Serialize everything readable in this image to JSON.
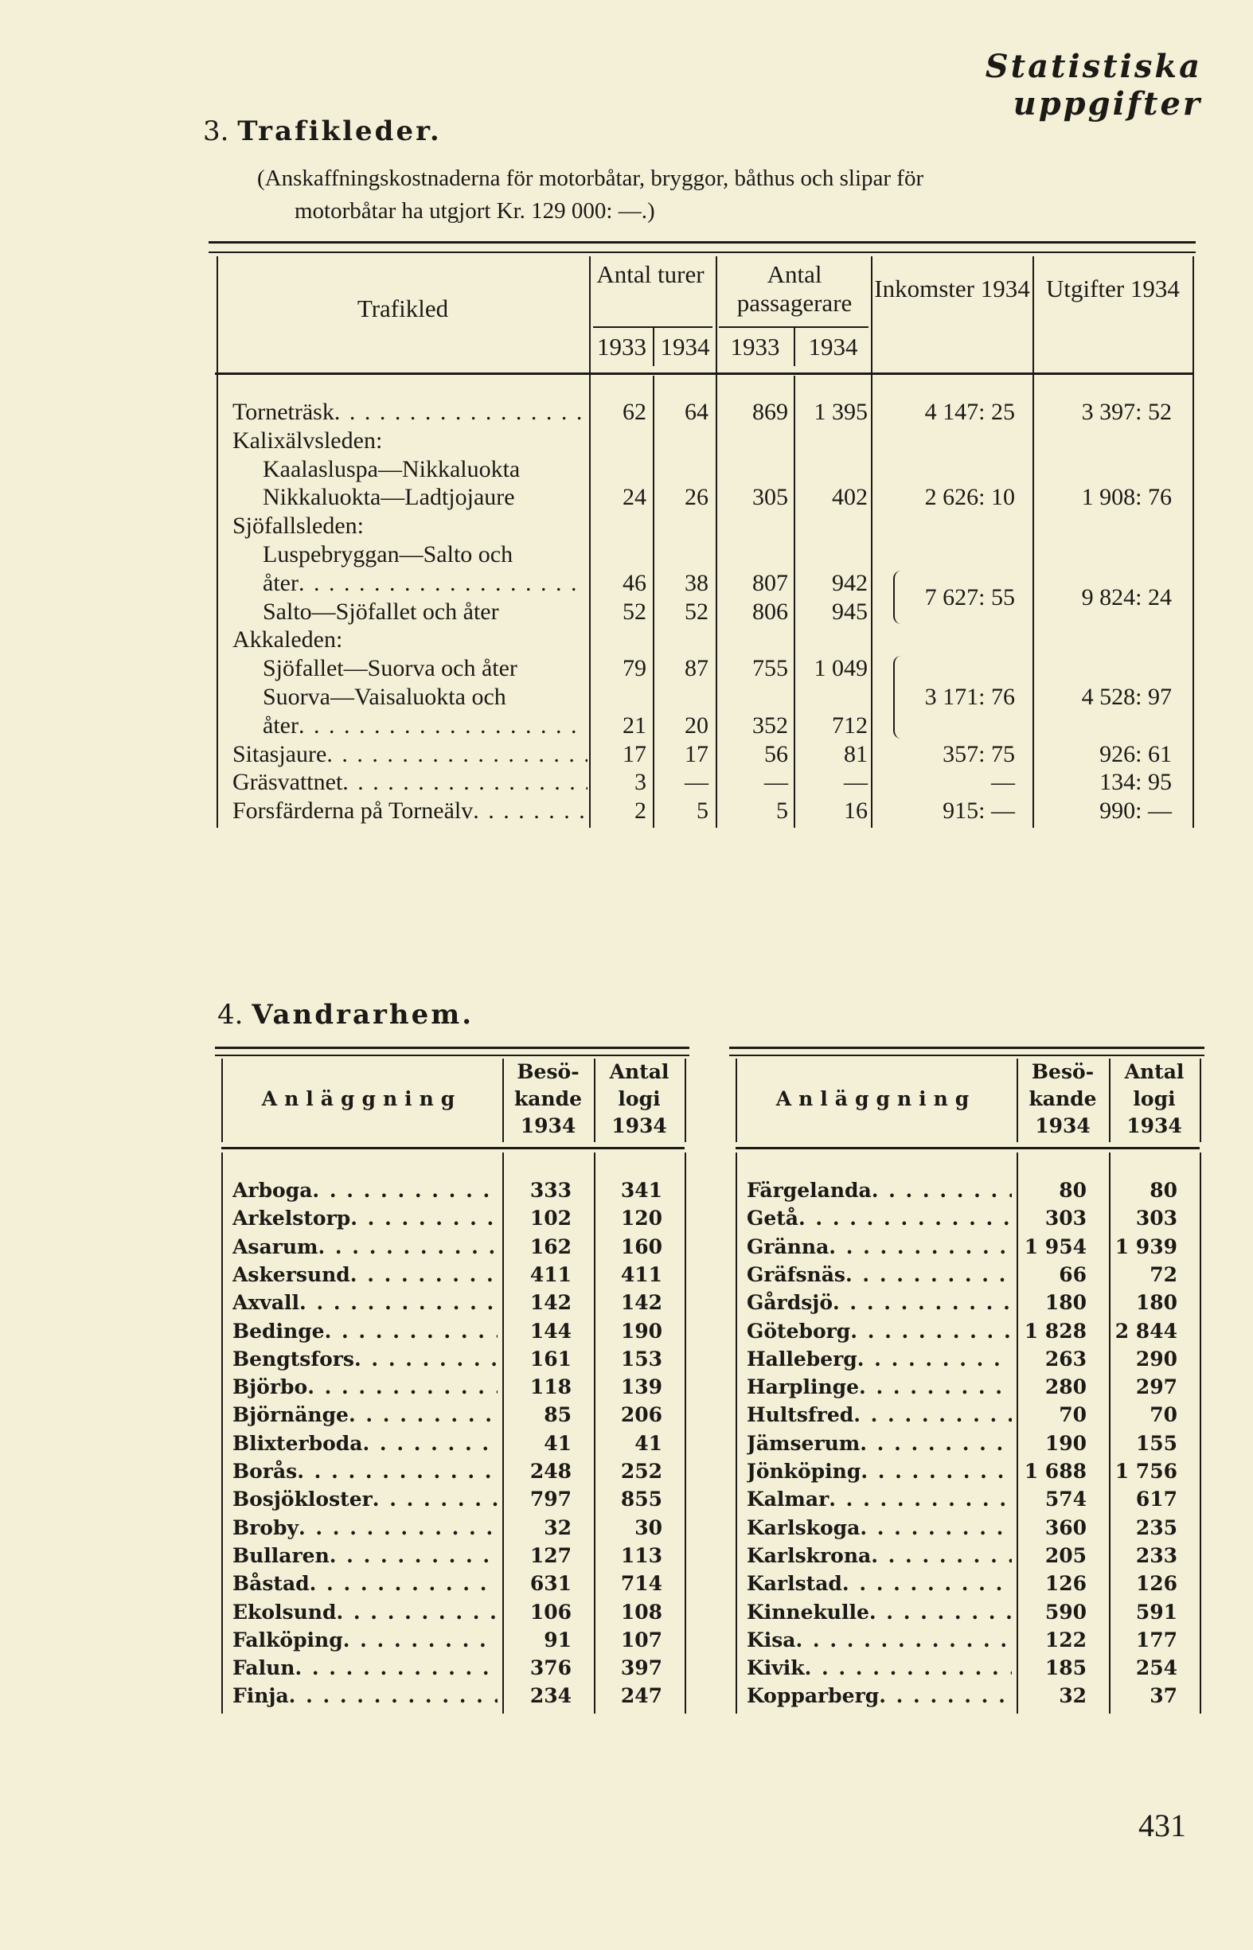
{
  "running_head": "Statistiska uppgifter",
  "section3": {
    "number": "3.",
    "title": "Trafikleder.",
    "note_line1": "(Anskaffningskostnaderna för motorbåtar, bryggor, båthus och slipar för",
    "note_line2": "motorbåtar ha utgjort Kr. 129 000: —.)",
    "headers": {
      "trafikled": "Trafikled",
      "turer": "Antal turer",
      "passagerare": "Antal passagerare",
      "inkomster": "Inkomster 1934",
      "utgifter": "Utgifter 1934",
      "y1933": "1933",
      "y1934": "1934"
    },
    "rows": [
      {
        "label": "Torneträsk",
        "indent": false,
        "leader": true,
        "values": [
          "62",
          "64",
          "869",
          "1 395"
        ],
        "inkomster": "4 147: 25",
        "utgifter": "3 397: 52"
      },
      {
        "label": "Kalixälvsleden:",
        "indent": false
      },
      {
        "label": "Kaalasluspa—Nikkaluokta",
        "indent": true
      },
      {
        "label": "Nikkaluokta—Ladtjojaure",
        "indent": true,
        "values": [
          "24",
          "26",
          "305",
          "402"
        ],
        "inkomster": "2 626: 10",
        "utgifter": "1 908: 76"
      },
      {
        "label": "Sjöfallsleden:",
        "indent": false
      },
      {
        "group": true,
        "inkomster": "7 627: 55",
        "utgifter": "9 824: 24",
        "rows": [
          {
            "label": "Luspebryggan—Salto och",
            "indent": true
          },
          {
            "label": "åter",
            "indent": true,
            "leader": true,
            "values": [
              "46",
              "38",
              "807",
              "942"
            ]
          },
          {
            "label": "Salto—Sjöfallet och åter",
            "indent": true,
            "values": [
              "52",
              "52",
              "806",
              "945"
            ]
          }
        ]
      },
      {
        "label": "Akkaleden:",
        "indent": false
      },
      {
        "group": true,
        "inkomster": "3 171: 76",
        "utgifter": "4 528: 97",
        "rows": [
          {
            "label": "Sjöfallet—Suorva och åter",
            "indent": true,
            "values": [
              "79",
              "87",
              "755",
              "1 049"
            ]
          },
          {
            "label": "Suorva—Vaisaluokta och",
            "indent": true
          },
          {
            "label": "åter",
            "indent": true,
            "leader": true,
            "values": [
              "21",
              "20",
              "352",
              "712"
            ]
          }
        ]
      },
      {
        "label": "Sitasjaure",
        "indent": false,
        "leader": true,
        "values": [
          "17",
          "17",
          "56",
          "81"
        ],
        "inkomster": "357: 75",
        "utgifter": "926: 61"
      },
      {
        "label": "Gräsvattnet",
        "indent": false,
        "leader": true,
        "values": [
          "3",
          "—",
          "—",
          "—"
        ],
        "inkomster": "—",
        "utgifter": "134: 95"
      },
      {
        "label": "Forsfärderna på Torneälv",
        "indent": false,
        "leader": true,
        "values": [
          "2",
          "5",
          "5",
          "16"
        ],
        "inkomster": "915: —",
        "utgifter": "990: —"
      }
    ]
  },
  "section4": {
    "number": "4.",
    "title": "Vandrarhem.",
    "headers": {
      "anlaggning": "Anläggning",
      "besok1": "Besö-",
      "besok2": "kande",
      "besok3": "1934",
      "logi1": "Antal",
      "logi2": "logi",
      "logi3": "1934"
    },
    "left": [
      [
        "Arboga",
        "333",
        "341"
      ],
      [
        "Arkelstorp",
        "102",
        "120"
      ],
      [
        "Asarum",
        "162",
        "160"
      ],
      [
        "Askersund",
        "411",
        "411"
      ],
      [
        "Axvall",
        "142",
        "142"
      ],
      [
        "Bedinge",
        "144",
        "190"
      ],
      [
        "Bengtsfors",
        "161",
        "153"
      ],
      [
        "Björbo",
        "118",
        "139"
      ],
      [
        "Björnänge",
        "85",
        "206"
      ],
      [
        "Blixterboda",
        "41",
        "41"
      ],
      [
        "Borås",
        "248",
        "252"
      ],
      [
        "Bosjökloster",
        "797",
        "855"
      ],
      [
        "Broby",
        "32",
        "30"
      ],
      [
        "Bullaren",
        "127",
        "113"
      ],
      [
        "Båstad",
        "631",
        "714"
      ],
      [
        "Ekolsund",
        "106",
        "108"
      ],
      [
        "Falköping",
        "91",
        "107"
      ],
      [
        "Falun",
        "376",
        "397"
      ],
      [
        "Finja",
        "234",
        "247"
      ]
    ],
    "right": [
      [
        "Färgelanda",
        "80",
        "80"
      ],
      [
        "Getå",
        "303",
        "303"
      ],
      [
        "Gränna",
        "1 954",
        "1 939"
      ],
      [
        "Gräfsnäs",
        "66",
        "72"
      ],
      [
        "Gårdsjö",
        "180",
        "180"
      ],
      [
        "Göteborg",
        "1 828",
        "2 844"
      ],
      [
        "Halleberg",
        "263",
        "290"
      ],
      [
        "Harplinge",
        "280",
        "297"
      ],
      [
        "Hultsfred",
        "70",
        "70"
      ],
      [
        "Jämserum",
        "190",
        "155"
      ],
      [
        "Jönköping",
        "1 688",
        "1 756"
      ],
      [
        "Kalmar",
        "574",
        "617"
      ],
      [
        "Karlskoga",
        "360",
        "235"
      ],
      [
        "Karlskrona",
        "205",
        "233"
      ],
      [
        "Karlstad",
        "126",
        "126"
      ],
      [
        "Kinnekulle",
        "590",
        "591"
      ],
      [
        "Kisa",
        "122",
        "177"
      ],
      [
        "Kivik",
        "185",
        "254"
      ],
      [
        "Kopparberg",
        "32",
        "37"
      ]
    ]
  },
  "page_number": "431"
}
